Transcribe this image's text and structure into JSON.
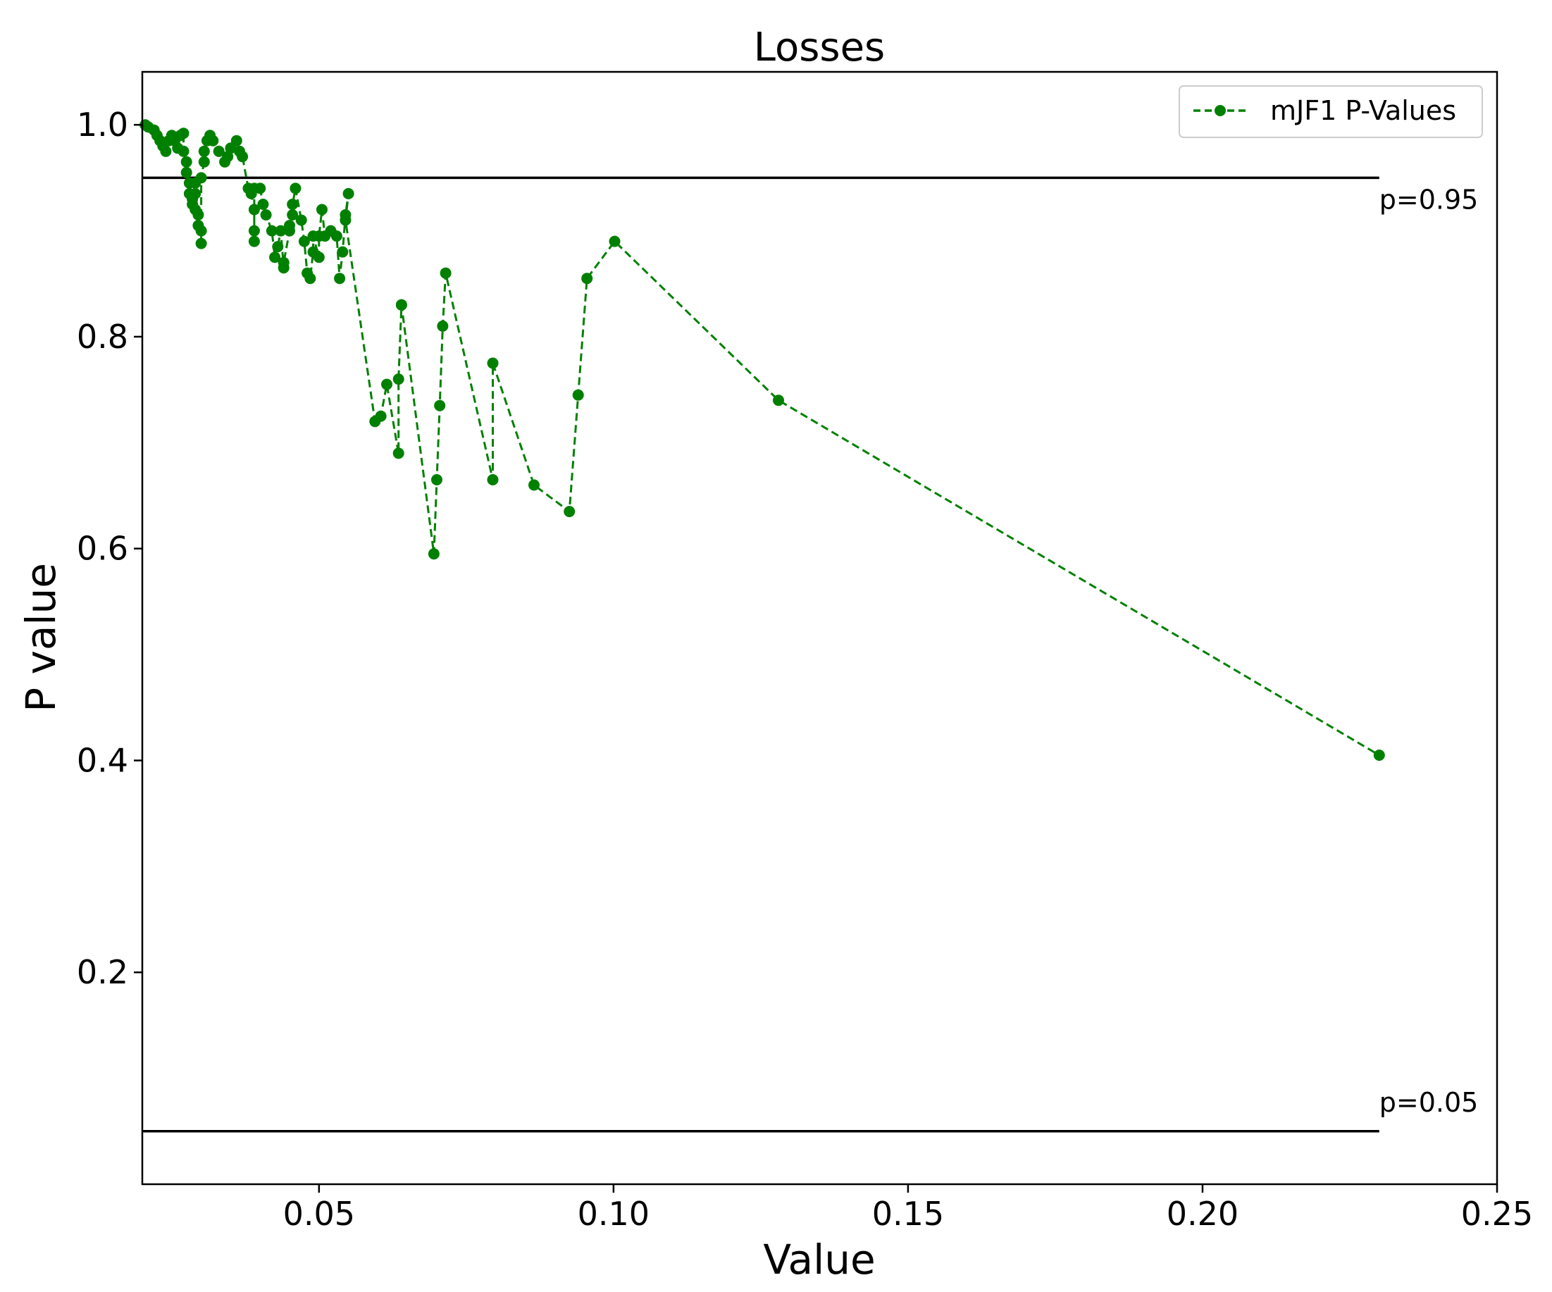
{
  "chart_data": {
    "type": "line",
    "title": "Losses",
    "xlabel": "Value",
    "ylabel": "P value",
    "xlim": [
      0.02,
      0.25
    ],
    "ylim": [
      0.0,
      1.05
    ],
    "x_ticks": [
      0.05,
      0.1,
      0.15,
      0.2,
      0.25
    ],
    "x_tick_labels": [
      "0.05",
      "0.10",
      "0.15",
      "0.20",
      "0.25"
    ],
    "y_ticks": [
      0.2,
      0.4,
      0.6,
      0.8,
      1.0
    ],
    "y_tick_labels": [
      "0.2",
      "0.4",
      "0.6",
      "0.8",
      "1.0"
    ],
    "grid": false,
    "legend_position": "top-right",
    "reference_lines": [
      {
        "y": 0.95,
        "x_from": 0.02,
        "x_to": 0.23,
        "label": "p=0.95",
        "color": "#000000"
      },
      {
        "y": 0.05,
        "x_from": 0.02,
        "x_to": 0.23,
        "label": "p=0.05",
        "color": "#000000"
      }
    ],
    "series": [
      {
        "name": "mJF1 P-Values",
        "color": "#008000",
        "line_style": "dashed",
        "marker": "circle",
        "x": [
          0.0205,
          0.021,
          0.022,
          0.0225,
          0.023,
          0.0235,
          0.024,
          0.0245,
          0.025,
          0.0255,
          0.026,
          0.0265,
          0.027,
          0.027,
          0.0275,
          0.0275,
          0.028,
          0.028,
          0.0285,
          0.0285,
          0.029,
          0.029,
          0.029,
          0.0295,
          0.0295,
          0.03,
          0.03,
          0.03,
          0.0305,
          0.0305,
          0.031,
          0.0315,
          0.032,
          0.033,
          0.034,
          0.0345,
          0.035,
          0.036,
          0.0365,
          0.037,
          0.038,
          0.0385,
          0.039,
          0.039,
          0.039,
          0.039,
          0.04,
          0.0405,
          0.041,
          0.042,
          0.0425,
          0.043,
          0.0435,
          0.044,
          0.044,
          0.045,
          0.045,
          0.0455,
          0.0455,
          0.046,
          0.047,
          0.0475,
          0.048,
          0.0485,
          0.049,
          0.049,
          0.05,
          0.05,
          0.0505,
          0.051,
          0.052,
          0.053,
          0.0535,
          0.054,
          0.0545,
          0.055,
          0.0545,
          0.0595,
          0.0605,
          0.0615,
          0.0635,
          0.0635,
          0.064,
          0.064,
          0.0695,
          0.07,
          0.0705,
          0.071,
          0.0715,
          0.0795,
          0.0795,
          0.0865,
          0.0925,
          0.094,
          0.0955,
          0.1002,
          0.128,
          0.23
        ],
        "y": [
          1.0,
          0.998,
          0.995,
          0.99,
          0.985,
          0.98,
          0.975,
          0.985,
          0.99,
          0.985,
          0.978,
          0.99,
          0.992,
          0.975,
          0.965,
          0.955,
          0.945,
          0.935,
          0.93,
          0.925,
          0.92,
          0.945,
          0.935,
          0.915,
          0.905,
          0.9,
          0.888,
          0.95,
          0.965,
          0.975,
          0.985,
          0.99,
          0.985,
          0.975,
          0.965,
          0.97,
          0.978,
          0.985,
          0.975,
          0.97,
          0.94,
          0.935,
          0.92,
          0.9,
          0.89,
          0.94,
          0.94,
          0.925,
          0.915,
          0.9,
          0.875,
          0.885,
          0.9,
          0.865,
          0.87,
          0.9,
          0.905,
          0.915,
          0.925,
          0.94,
          0.91,
          0.89,
          0.86,
          0.855,
          0.88,
          0.895,
          0.875,
          0.895,
          0.92,
          0.895,
          0.9,
          0.895,
          0.855,
          0.88,
          0.915,
          0.935,
          0.91,
          0.72,
          0.725,
          0.755,
          0.69,
          0.76,
          0.83,
          0.83,
          0.595,
          0.665,
          0.735,
          0.81,
          0.86,
          0.665,
          0.775,
          0.66,
          0.635,
          0.745,
          0.855,
          0.89,
          0.74,
          0.405
        ]
      }
    ]
  }
}
